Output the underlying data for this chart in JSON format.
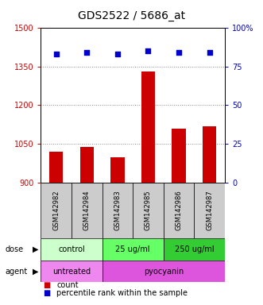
{
  "title": "GDS2522 / 5686_at",
  "samples": [
    "GSM142982",
    "GSM142984",
    "GSM142983",
    "GSM142985",
    "GSM142986",
    "GSM142987"
  ],
  "counts": [
    1020,
    1040,
    1000,
    1330,
    1110,
    1120
  ],
  "percentiles": [
    83,
    84,
    83,
    85,
    84,
    84
  ],
  "ylim_left": [
    900,
    1500
  ],
  "ylim_right": [
    0,
    100
  ],
  "yticks_left": [
    900,
    1050,
    1200,
    1350,
    1500
  ],
  "yticks_right": [
    0,
    25,
    50,
    75,
    100
  ],
  "right_tick_labels": [
    "0",
    "25",
    "50",
    "75",
    "100%"
  ],
  "bar_color": "#cc0000",
  "dot_color": "#0000cc",
  "dose_colors": [
    "#ccffcc",
    "#66ff66",
    "#33cc33"
  ],
  "agent_colors": [
    "#ee88ee",
    "#dd55dd"
  ],
  "grid_color": "#888888",
  "background_color": "#ffffff",
  "title_fontsize": 10,
  "tick_fontsize": 7,
  "label_fontsize": 7,
  "sample_fontsize": 6
}
